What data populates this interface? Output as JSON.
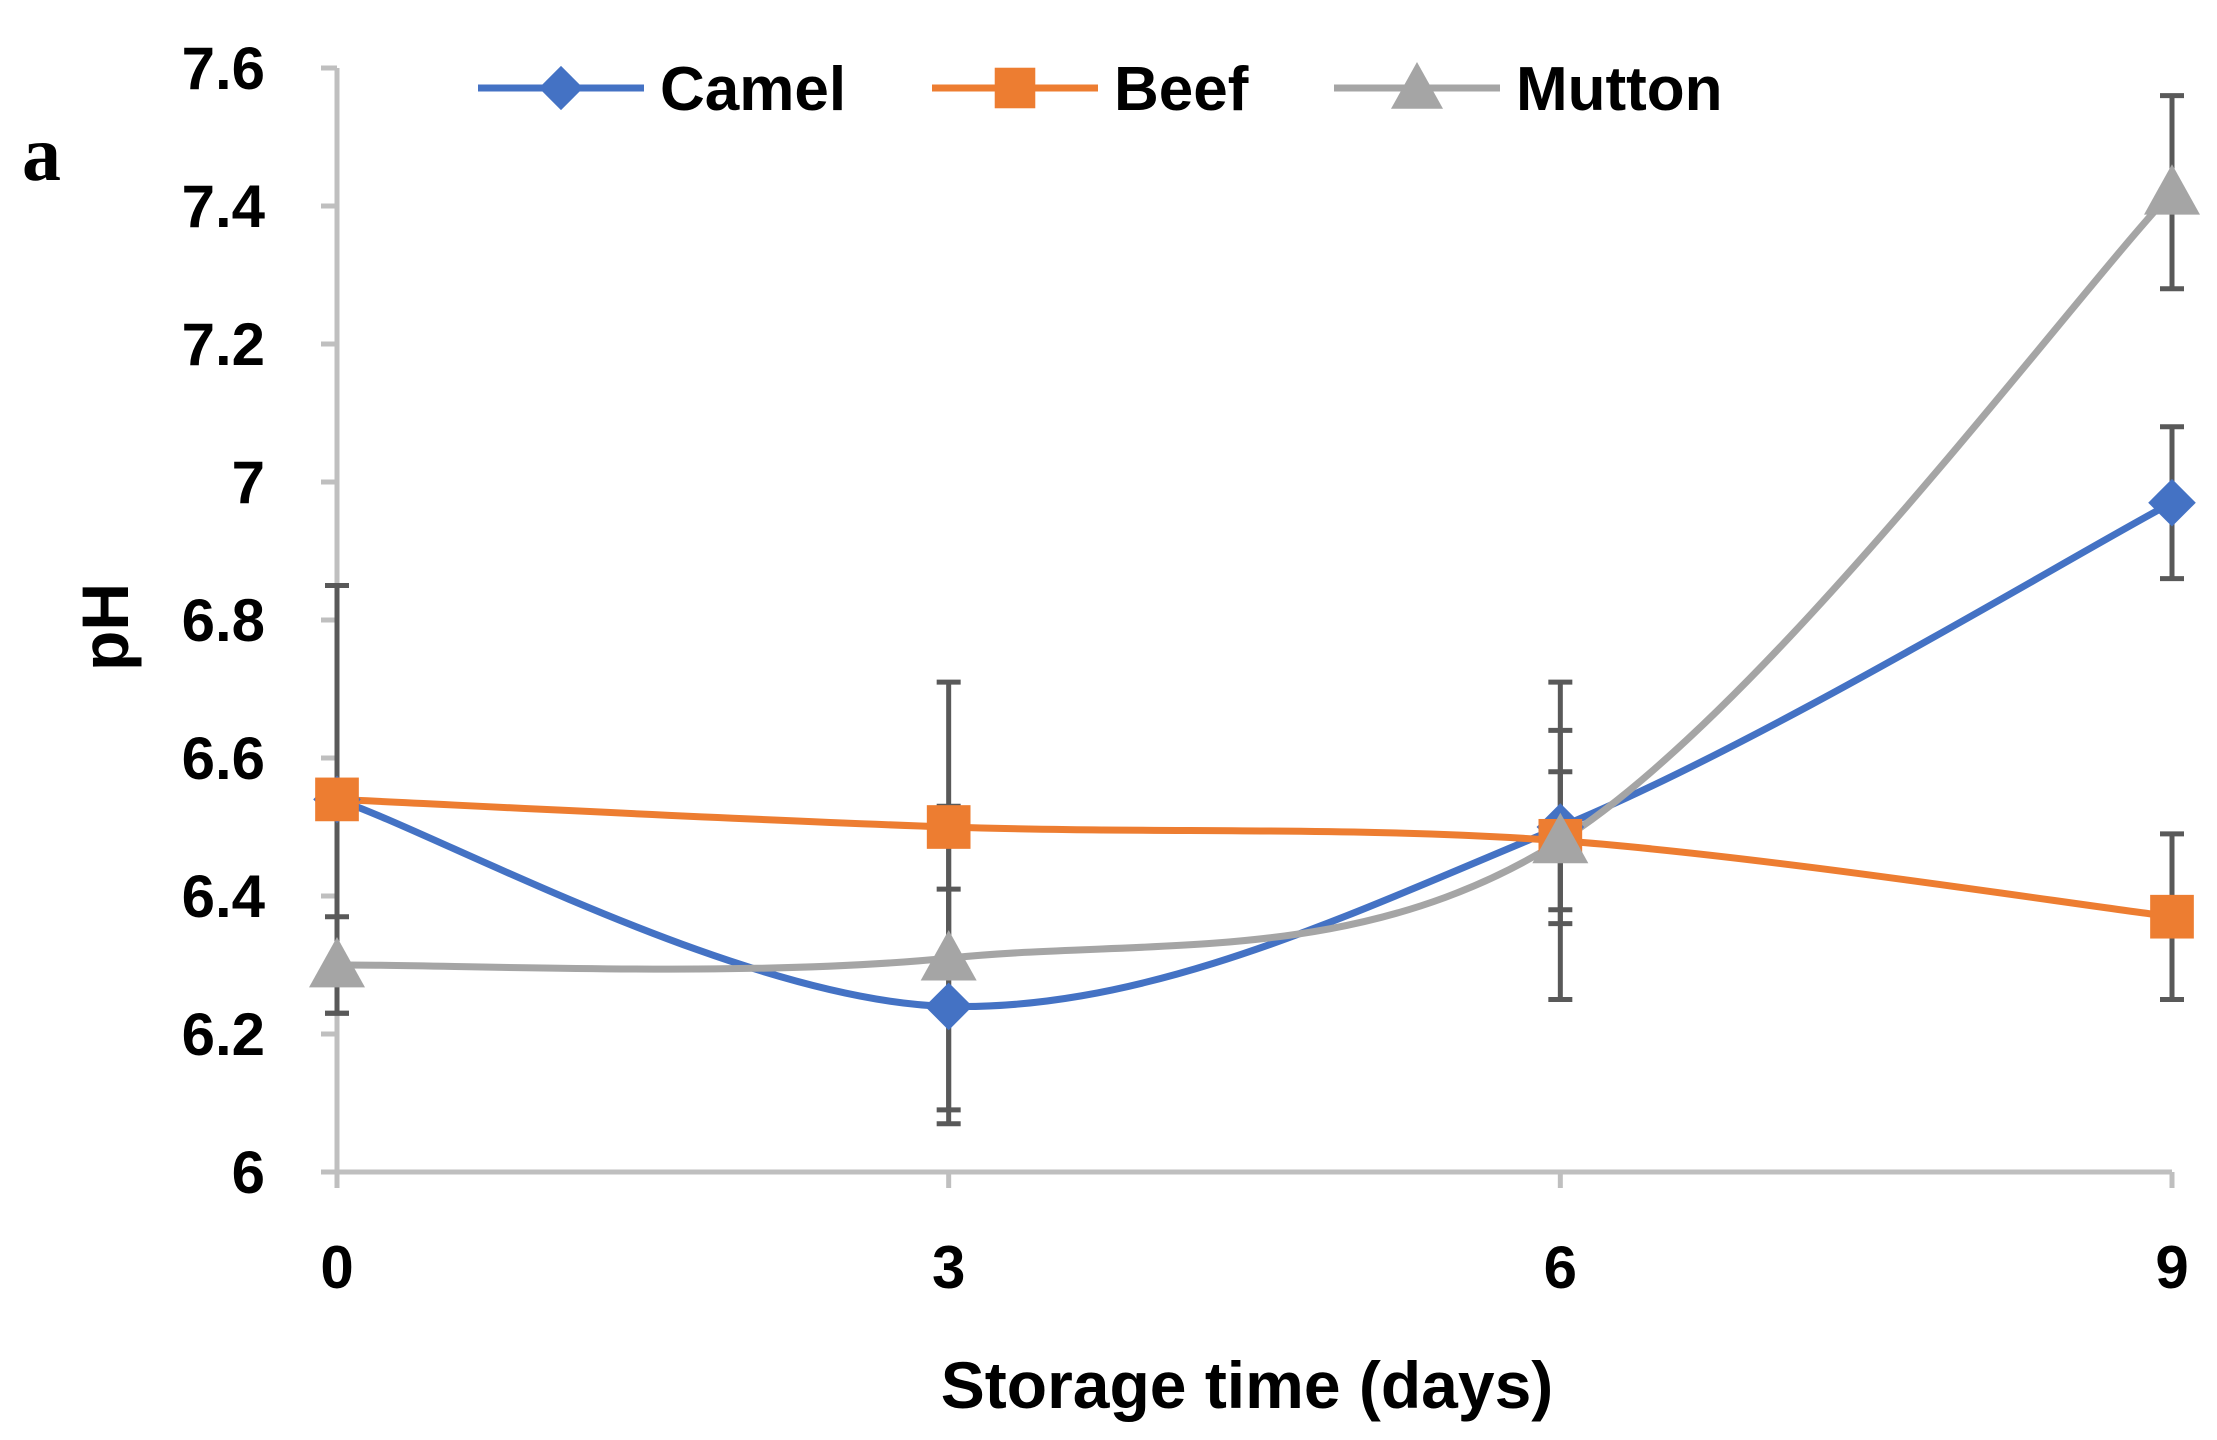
{
  "panel_label": "a",
  "chart_data": {
    "type": "line",
    "title": "",
    "xlabel": "Storage time (days)",
    "ylabel": "pH",
    "x": [
      0,
      3,
      6,
      9
    ],
    "x_tick_labels": [
      "0",
      "3",
      "6",
      "9"
    ],
    "ylim": [
      6,
      7.6
    ],
    "y_ticks": [
      6,
      6.2,
      6.4,
      6.6,
      6.8,
      7,
      7.2,
      7.4,
      7.6
    ],
    "y_tick_labels": [
      "6",
      "6.2",
      "6.4",
      "6.6",
      "6.8",
      "7",
      "7.2",
      "7.4",
      "7.6"
    ],
    "grid": false,
    "smooth": true,
    "legend_position": "top",
    "series": [
      {
        "name": "Camel",
        "marker": "diamond",
        "color": "#4472C4",
        "values": [
          6.54,
          6.24,
          6.5,
          6.97
        ],
        "errors": [
          0.0,
          0.17,
          0.14,
          0.11
        ]
      },
      {
        "name": "Beef",
        "marker": "square",
        "color": "#ED7D31",
        "values": [
          6.54,
          6.5,
          6.48,
          6.37
        ],
        "errors": [
          0.31,
          0.21,
          0.23,
          0.12
        ]
      },
      {
        "name": "Mutton",
        "marker": "triangle",
        "color": "#A5A5A5",
        "values": [
          6.3,
          6.31,
          6.48,
          7.42
        ],
        "errors": [
          0.07,
          0.22,
          0.1,
          0.14
        ]
      }
    ]
  },
  "colors": {
    "axis": "#BFBFBF",
    "error_bar": "#595959"
  }
}
